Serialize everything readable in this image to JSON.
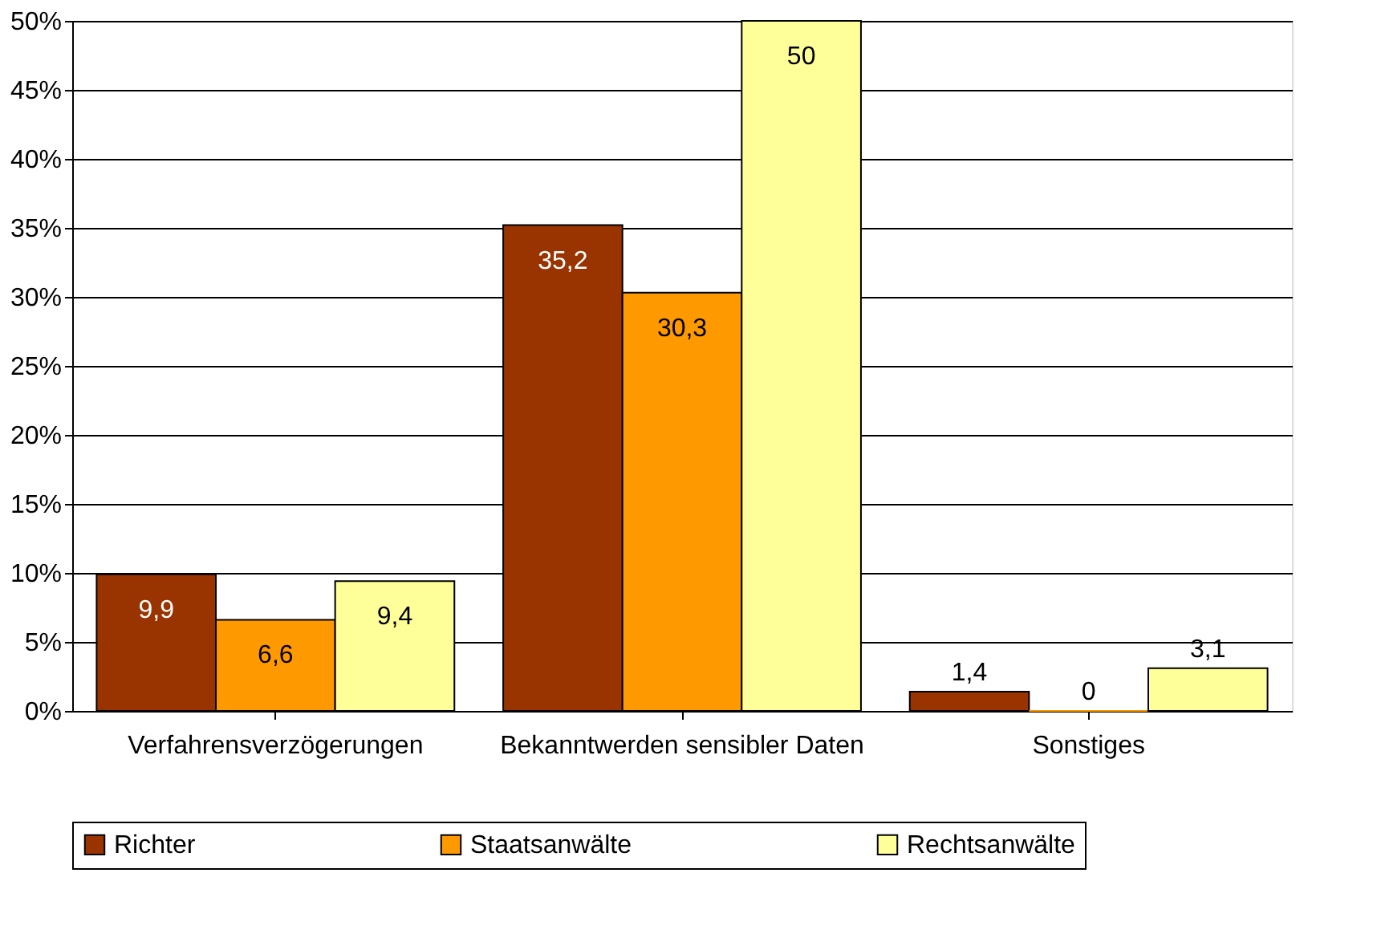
{
  "chart_data": {
    "type": "bar",
    "categories": [
      "Verfahrensverzögerungen",
      "Bekanntwerden sensibler Daten",
      "Sonstiges"
    ],
    "series": [
      {
        "name": "Richter",
        "color": "#993300",
        "values": [
          9.9,
          35.2,
          1.4
        ],
        "value_labels": [
          "9,9",
          "35,2",
          "1,4"
        ]
      },
      {
        "name": "Staatsanwälte",
        "color": "#ff9900",
        "values": [
          6.6,
          30.3,
          0
        ],
        "value_labels": [
          "6,6",
          "30,3",
          "0"
        ]
      },
      {
        "name": "Rechtsanwälte",
        "color": "#ffff99",
        "values": [
          9.4,
          50,
          3.1
        ],
        "value_labels": [
          "9,4",
          "50",
          "3,1"
        ]
      }
    ],
    "ylim": [
      0,
      50
    ],
    "yticks": [
      {
        "value": 0,
        "label": "0%"
      },
      {
        "value": 5,
        "label": "5%"
      },
      {
        "value": 10,
        "label": "10%"
      },
      {
        "value": 15,
        "label": "15%"
      },
      {
        "value": 20,
        "label": "20%"
      },
      {
        "value": 25,
        "label": "25%"
      },
      {
        "value": 30,
        "label": "30%"
      },
      {
        "value": 35,
        "label": "35%"
      },
      {
        "value": 40,
        "label": "40%"
      },
      {
        "value": 45,
        "label": "45%"
      },
      {
        "value": 50,
        "label": "50%"
      }
    ],
    "grid": "y",
    "legend": "bottom"
  }
}
